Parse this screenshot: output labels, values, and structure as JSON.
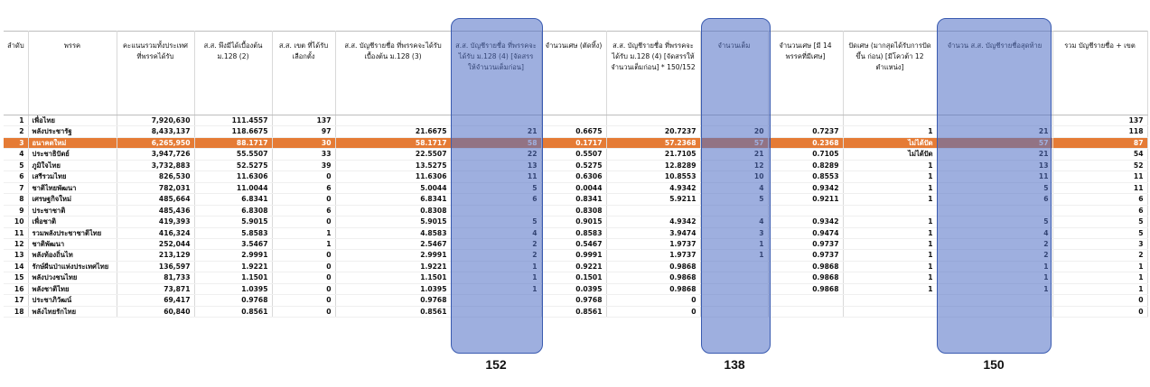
{
  "headers": [
    "ลำดับ",
    "พรรค",
    "คะแนนรวมทั้งประเทศ ที่พรรคได้รับ",
    "ส.ส. พึงมีได้เบื้องต้น ม.128 (2)",
    "ส.ส. เขต ที่ได้รับเลือกตั้ง",
    "ส.ส. บัญชีรายชื่อ ที่พรรคจะได้รับเบื้องต้น ม.128 (3)",
    "ส.ส. บัญชีรายชื่อ ที่พรรคจะได้รับ ม.128 (4) [จัดสรรให้จำนวนเต็มก่อน]",
    "จำนวนเศษ (ตัดทิ้ง)",
    "ส.ส. บัญชีรายชื่อ ที่พรรคจะได้รับ ม.128 (4) [จัดสรรให้จำนวนเต็มก่อน] * 150/152",
    "จำนวนเต็ม",
    "จำนวนเศษ [มี 14 พรรคที่มีเศษ]",
    "ปัดเศษ (มากสุดได้รับการปัดขึ้น ก่อน) [มีโควต้า 12 ตำแหน่ง]",
    "จำนวน ส.ส. บัญชีรายชื่อสุดท้าย",
    "รวม บัญชีรายชื่อ + เขต"
  ],
  "rows": [
    [
      "1",
      "เพื่อไทย",
      "7,920,630",
      "111.4557",
      "137",
      "",
      "",
      "",
      "",
      "",
      "",
      "",
      "",
      "137"
    ],
    [
      "2",
      "พลังประชารัฐ",
      "8,433,137",
      "118.6675",
      "97",
      "21.6675",
      "21",
      "0.6675",
      "20.7237",
      "20",
      "0.7237",
      "1",
      "21",
      "118"
    ],
    [
      "3",
      "อนาคตใหม่",
      "6,265,950",
      "88.1717",
      "30",
      "58.1717",
      "58",
      "0.1717",
      "57.2368",
      "57",
      "0.2368",
      "ไม่ได้ปัด",
      "57",
      "87"
    ],
    [
      "4",
      "ประชาธิปัตย์",
      "3,947,726",
      "55.5507",
      "33",
      "22.5507",
      "22",
      "0.5507",
      "21.7105",
      "21",
      "0.7105",
      "ไม่ได้ปัด",
      "21",
      "54"
    ],
    [
      "5",
      "ภูมิใจไทย",
      "3,732,883",
      "52.5275",
      "39",
      "13.5275",
      "13",
      "0.5275",
      "12.8289",
      "12",
      "0.8289",
      "1",
      "13",
      "52"
    ],
    [
      "6",
      "เสรีรวมไทย",
      "826,530",
      "11.6306",
      "0",
      "11.6306",
      "11",
      "0.6306",
      "10.8553",
      "10",
      "0.8553",
      "1",
      "11",
      "11"
    ],
    [
      "7",
      "ชาติไทยพัฒนา",
      "782,031",
      "11.0044",
      "6",
      "5.0044",
      "5",
      "0.0044",
      "4.9342",
      "4",
      "0.9342",
      "1",
      "5",
      "11"
    ],
    [
      "8",
      "เศรษฐกิจใหม่",
      "485,664",
      "6.8341",
      "0",
      "6.8341",
      "6",
      "0.8341",
      "5.9211",
      "5",
      "0.9211",
      "1",
      "6",
      "6"
    ],
    [
      "9",
      "ประชาชาติ",
      "485,436",
      "6.8308",
      "6",
      "0.8308",
      "",
      "0.8308",
      "",
      "",
      "",
      "",
      "",
      "6"
    ],
    [
      "10",
      "เพื่อชาติ",
      "419,393",
      "5.9015",
      "0",
      "5.9015",
      "5",
      "0.9015",
      "4.9342",
      "4",
      "0.9342",
      "1",
      "5",
      "5"
    ],
    [
      "11",
      "รวมพลังประชาชาติไทย",
      "416,324",
      "5.8583",
      "1",
      "4.8583",
      "4",
      "0.8583",
      "3.9474",
      "3",
      "0.9474",
      "1",
      "4",
      "5"
    ],
    [
      "12",
      "ชาติพัฒนา",
      "252,044",
      "3.5467",
      "1",
      "2.5467",
      "2",
      "0.5467",
      "1.9737",
      "1",
      "0.9737",
      "1",
      "2",
      "3"
    ],
    [
      "13",
      "พลังท้องถิ่นไท",
      "213,129",
      "2.9991",
      "0",
      "2.9991",
      "2",
      "0.9991",
      "1.9737",
      "1",
      "0.9737",
      "1",
      "2",
      "2"
    ],
    [
      "14",
      "รักษ์ผืนป่าแห่งประเทศไทย",
      "136,597",
      "1.9221",
      "0",
      "1.9221",
      "1",
      "0.9221",
      "0.9868",
      "",
      "0.9868",
      "1",
      "1",
      "1"
    ],
    [
      "15",
      "พลังปวงชนไทย",
      "81,733",
      "1.1501",
      "0",
      "1.1501",
      "1",
      "0.1501",
      "0.9868",
      "",
      "0.9868",
      "1",
      "1",
      "1"
    ],
    [
      "16",
      "พลังชาติไทย",
      "73,871",
      "1.0395",
      "0",
      "1.0395",
      "1",
      "0.0395",
      "0.9868",
      "",
      "0.9868",
      "1",
      "1",
      "1"
    ],
    [
      "17",
      "ประชาภิวัฒน์",
      "69,417",
      "0.9768",
      "0",
      "0.9768",
      "",
      "0.9768",
      "0",
      "",
      "",
      "",
      "",
      "0"
    ],
    [
      "18",
      "พลังไทยรักไทย",
      "60,840",
      "0.8561",
      "0",
      "0.8561",
      "",
      "0.8561",
      "0",
      "",
      "",
      "",
      "",
      "0"
    ]
  ],
  "highlight_row": 2,
  "totals": {
    "col_list_initial": "152",
    "col_whole": "138",
    "col_final": "150"
  },
  "colors": {
    "highlight_row": "#e57b35",
    "overlay": "#4f6ec4"
  }
}
